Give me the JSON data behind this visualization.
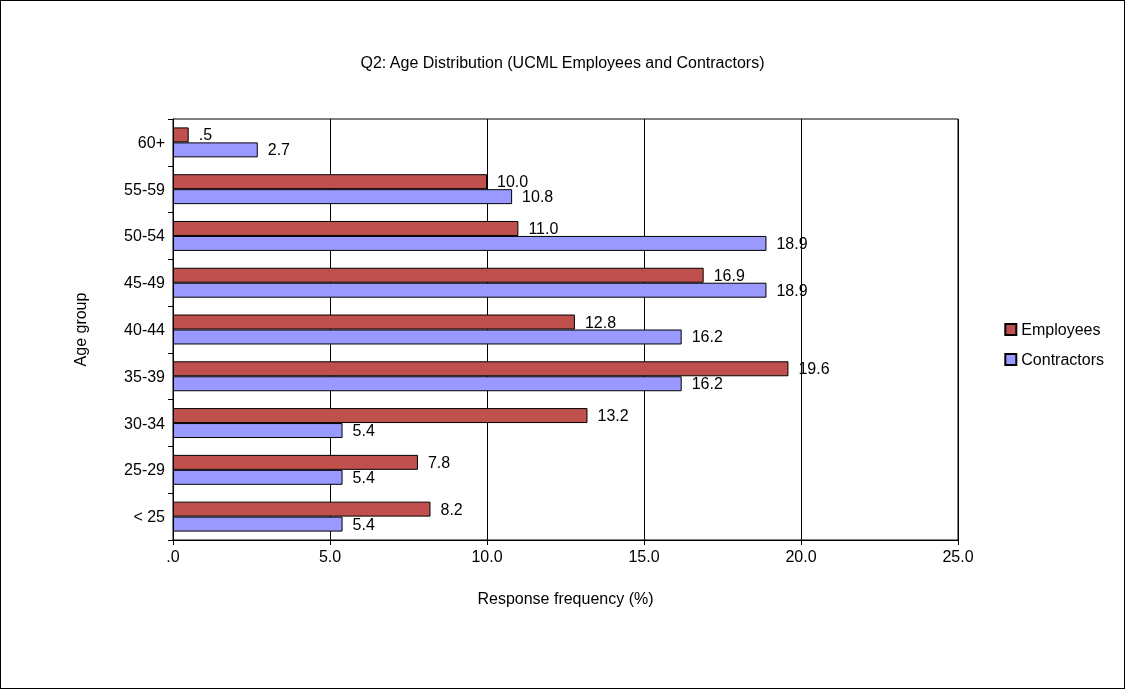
{
  "chart_data": {
    "type": "bar",
    "orientation": "horizontal",
    "title": "Q2: Age Distribution (UCML Employees and Contractors)",
    "xlabel": "Response frequency (%)",
    "ylabel": "Age group",
    "categories": [
      "60+",
      "55-59",
      "50-54",
      "45-49",
      "40-44",
      "35-39",
      "30-34",
      "25-29",
      "< 25"
    ],
    "series": [
      {
        "name": "Employees",
        "color": "#c0504d",
        "values": [
          0.5,
          10.0,
          11.0,
          16.9,
          12.8,
          19.6,
          13.2,
          7.8,
          8.2
        ],
        "value_labels": [
          ".5",
          "10.0",
          "11.0",
          "16.9",
          "12.8",
          "19.6",
          "13.2",
          "7.8",
          "8.2"
        ]
      },
      {
        "name": "Contractors",
        "color": "#9999ff",
        "values": [
          2.7,
          10.8,
          18.9,
          18.9,
          16.2,
          16.2,
          5.4,
          5.4,
          5.4
        ],
        "value_labels": [
          "2.7",
          "10.8",
          "18.9",
          "18.9",
          "16.2",
          "16.2",
          "5.4",
          "5.4",
          "5.4"
        ]
      }
    ],
    "xlim": [
      0,
      25
    ],
    "xticks": [
      {
        "value": 0,
        "label": ".0"
      },
      {
        "value": 5,
        "label": "5.0"
      },
      {
        "value": 10,
        "label": "10.0"
      },
      {
        "value": 15,
        "label": "15.0"
      },
      {
        "value": 20,
        "label": "20.0"
      },
      {
        "value": 25,
        "label": "25.0"
      }
    ],
    "grid": "x",
    "legend": "right"
  }
}
